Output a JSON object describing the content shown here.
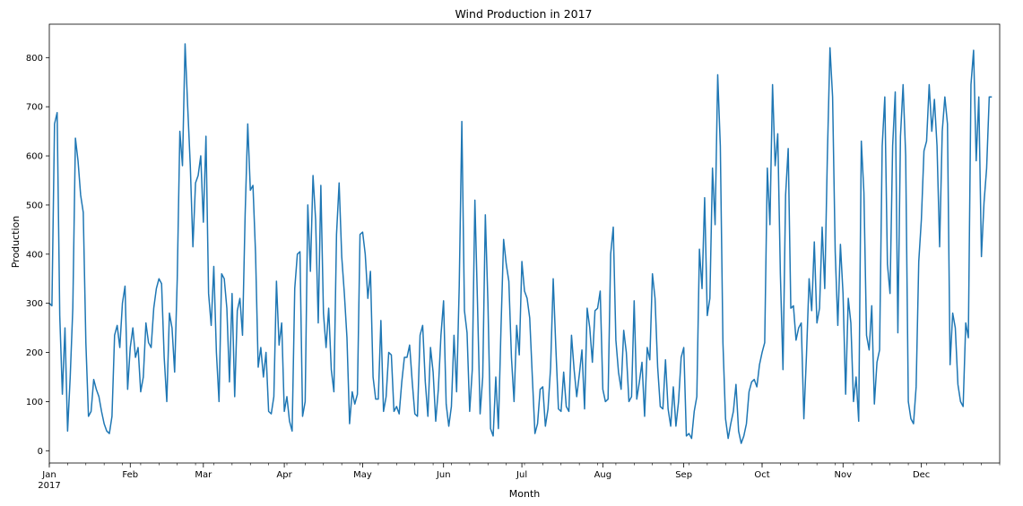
{
  "chart_data": {
    "type": "line",
    "title": "Wind Production in 2017",
    "xlabel": "Month",
    "ylabel": "Production",
    "ylim": [
      -25,
      868
    ],
    "xlim": [
      "2017-01-01",
      "2017-12-31"
    ],
    "grid": false,
    "x_ticks": [
      {
        "date": "2017-01-01",
        "label": "Jan",
        "sublabel": "2017"
      },
      {
        "date": "2017-02-01",
        "label": "Feb"
      },
      {
        "date": "2017-03-01",
        "label": "Mar"
      },
      {
        "date": "2017-04-01",
        "label": "Apr"
      },
      {
        "date": "2017-05-01",
        "label": "May"
      },
      {
        "date": "2017-06-01",
        "label": "Jun"
      },
      {
        "date": "2017-07-01",
        "label": "Jul"
      },
      {
        "date": "2017-08-01",
        "label": "Aug"
      },
      {
        "date": "2017-09-01",
        "label": "Sep"
      },
      {
        "date": "2017-10-01",
        "label": "Oct"
      },
      {
        "date": "2017-11-01",
        "label": "Nov"
      },
      {
        "date": "2017-12-01",
        "label": "Dec"
      }
    ],
    "y_ticks": [
      0,
      100,
      200,
      300,
      400,
      500,
      600,
      700,
      800
    ],
    "series": [
      {
        "color": "#1f77b4",
        "start_date": "2017-01-01",
        "frequency": "daily",
        "values": [
          300,
          295,
          665,
          688,
          275,
          115,
          250,
          40,
          150,
          290,
          636,
          590,
          520,
          485,
          220,
          70,
          80,
          145,
          125,
          110,
          80,
          55,
          40,
          35,
          70,
          235,
          255,
          210,
          300,
          335,
          125,
          210,
          250,
          190,
          210,
          120,
          150,
          260,
          220,
          210,
          290,
          330,
          350,
          340,
          190,
          100,
          280,
          250,
          160,
          350,
          650,
          580,
          828,
          700,
          580,
          415,
          545,
          560,
          600,
          465,
          640,
          320,
          255,
          375,
          200,
          100,
          360,
          350,
          290,
          140,
          320,
          110,
          285,
          310,
          235,
          480,
          665,
          530,
          540,
          400,
          170,
          210,
          150,
          200,
          80,
          75,
          110,
          345,
          215,
          260,
          80,
          110,
          60,
          40,
          330,
          400,
          405,
          70,
          100,
          500,
          365,
          560,
          470,
          260,
          540,
          280,
          210,
          290,
          165,
          120,
          440,
          545,
          395,
          320,
          230,
          55,
          120,
          95,
          115,
          440,
          445,
          400,
          310,
          365,
          150,
          105,
          105,
          265,
          80,
          110,
          200,
          195,
          80,
          90,
          75,
          140,
          190,
          190,
          215,
          140,
          75,
          70,
          235,
          255,
          140,
          70,
          210,
          160,
          60,
          125,
          235,
          305,
          95,
          50,
          90,
          235,
          120,
          335,
          670,
          285,
          240,
          80,
          165,
          510,
          300,
          75,
          150,
          480,
          300,
          45,
          30,
          150,
          45,
          250,
          430,
          380,
          345,
          190,
          100,
          255,
          195,
          385,
          325,
          310,
          270,
          150,
          35,
          55,
          125,
          130,
          50,
          85,
          170,
          350,
          210,
          85,
          80,
          160,
          90,
          80,
          235,
          165,
          110,
          155,
          205,
          85,
          290,
          250,
          180,
          285,
          290,
          325,
          125,
          100,
          105,
          400,
          455,
          225,
          160,
          125,
          245,
          200,
          100,
          110,
          305,
          105,
          140,
          180,
          70,
          210,
          185,
          360,
          310,
          170,
          90,
          85,
          185,
          85,
          50,
          130,
          50,
          100,
          190,
          210,
          30,
          35,
          25,
          80,
          110,
          410,
          330,
          515,
          275,
          310,
          575,
          460,
          765,
          620,
          220,
          65,
          25,
          55,
          80,
          135,
          40,
          15,
          30,
          55,
          120,
          140,
          145,
          130,
          175,
          200,
          220,
          575,
          460,
          745,
          580,
          645,
          360,
          165,
          520,
          615,
          290,
          295,
          225,
          250,
          260,
          65,
          195,
          350,
          285,
          425,
          260,
          290,
          455,
          330,
          600,
          820,
          720,
          405,
          255,
          420,
          320,
          115,
          310,
          260,
          100,
          150,
          60,
          630,
          525,
          235,
          205,
          295,
          95,
          180,
          205,
          620,
          720,
          380,
          320,
          620,
          730,
          240,
          640,
          745,
          600,
          100,
          65,
          55,
          130,
          385,
          470,
          610,
          630,
          745,
          650,
          715,
          620,
          415,
          650,
          720,
          665,
          175,
          280,
          250,
          135,
          100,
          90,
          260,
          230,
          745,
          815,
          590,
          720,
          395,
          505,
          575,
          720,
          720
        ]
      }
    ]
  }
}
